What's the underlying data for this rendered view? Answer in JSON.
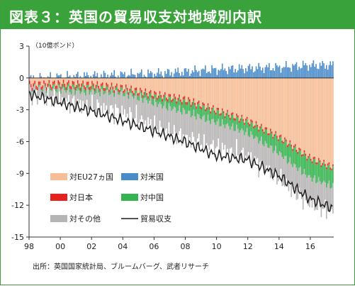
{
  "header": {
    "title": "図表３：英国の貿易収支対地域別内訳"
  },
  "footer": {
    "source": "出所：英国国家統計局、ブルームバーグ、武者リサーチ"
  },
  "chart_data": {
    "type": "bar",
    "stacked": true,
    "unit_label": "（10億ポンド）",
    "ylim": [
      -15,
      3
    ],
    "y_ticks": [
      3,
      0,
      -3,
      -6,
      -9,
      -12,
      -15
    ],
    "x_tick_labels": [
      "98",
      "00",
      "02",
      "04",
      "06",
      "08",
      "10",
      "12",
      "14",
      "16"
    ],
    "x_range": [
      "1998-01",
      "2017-06"
    ],
    "frequency": "monthly",
    "grid": false,
    "legend_position": "lower-left inside",
    "colors": {
      "eu27": "#f7bd96",
      "us": "#4a8cc9",
      "japan": "#e8211f",
      "china": "#34b34f",
      "other": "#b7b4b4",
      "balance": "#1a1a1a"
    },
    "series": [
      {
        "name": "対EU27ヵ国",
        "key": "eu27",
        "x": [
          1998,
          2000,
          2002,
          2004,
          2006,
          2008,
          2010,
          2012,
          2014,
          2016,
          2017.5
        ],
        "values": [
          -0.6,
          -0.5,
          -0.6,
          -0.9,
          -1.5,
          -2.0,
          -3.0,
          -4.0,
          -5.5,
          -7.5,
          -8.4
        ]
      },
      {
        "name": "対米国",
        "key": "us",
        "x": [
          1998,
          2000,
          2002,
          2004,
          2006,
          2008,
          2010,
          2012,
          2014,
          2016,
          2017.5
        ],
        "values": [
          -0.1,
          0.1,
          0.2,
          0.3,
          0.4,
          0.6,
          0.8,
          0.9,
          1.0,
          1.2,
          1.2
        ]
      },
      {
        "name": "対日本",
        "key": "japan",
        "x": [
          1998,
          2000,
          2002,
          2004,
          2006,
          2008,
          2010,
          2012,
          2014,
          2016,
          2017.5
        ],
        "values": [
          -0.3,
          -0.3,
          -0.3,
          -0.25,
          -0.25,
          -0.25,
          -0.2,
          -0.2,
          -0.2,
          -0.2,
          -0.2
        ]
      },
      {
        "name": "対中国",
        "key": "china",
        "x": [
          1998,
          2000,
          2002,
          2004,
          2006,
          2008,
          2010,
          2012,
          2014,
          2016,
          2017.5
        ],
        "values": [
          -0.1,
          -0.2,
          -0.3,
          -0.4,
          -0.6,
          -0.8,
          -1.0,
          -1.1,
          -1.3,
          -1.6,
          -1.7
        ]
      },
      {
        "name": "対その他",
        "key": "other",
        "x": [
          1998,
          2000,
          2002,
          2004,
          2006,
          2008,
          2010,
          2012,
          2014,
          2016,
          2017.5
        ],
        "values": [
          -0.6,
          -1.0,
          -1.4,
          -1.8,
          -2.2,
          -2.4,
          -2.4,
          -2.2,
          -2.4,
          -2.5,
          -2.5
        ]
      },
      {
        "name": "貿易収支",
        "key": "balance",
        "type": "line",
        "x": [
          1998,
          2000,
          2002,
          2004,
          2006,
          2008,
          2010,
          2012,
          2014,
          2016,
          2017.5
        ],
        "values": [
          -1.5,
          -2.3,
          -3.1,
          -4.0,
          -5.0,
          -6.0,
          -7.3,
          -7.7,
          -9.2,
          -11.4,
          -12.3
        ]
      }
    ]
  }
}
